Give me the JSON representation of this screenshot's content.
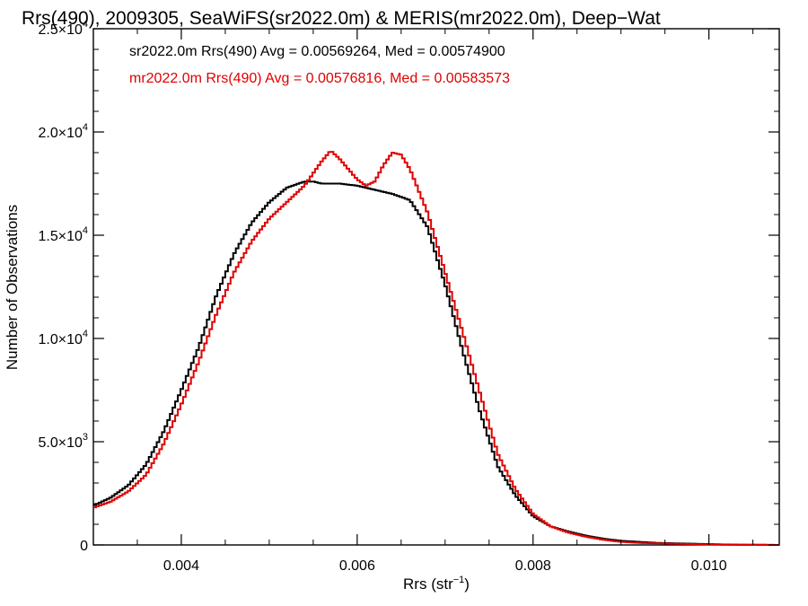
{
  "chart_data": {
    "type": "line",
    "title": "Rrs(490), 2009305, SeaWiFS(sr2022.0m) & MERIS(mr2022.0m), Deep−Wat",
    "xlabel": "Rrs (str",
    "xlabel_sup": "−1",
    "xlabel_close": ")",
    "ylabel": "Number of Observations",
    "xlim": [
      0.003,
      0.0108
    ],
    "ylim": [
      0,
      25000
    ],
    "x_ticks": [
      {
        "value": 0.004,
        "label": "0.004"
      },
      {
        "value": 0.006,
        "label": "0.006"
      },
      {
        "value": 0.008,
        "label": "0.008"
      },
      {
        "value": 0.01,
        "label": "0.010"
      }
    ],
    "y_ticks": [
      {
        "value": 0,
        "label": "0"
      },
      {
        "value": 5000,
        "mant": "5.0×10",
        "exp": "3"
      },
      {
        "value": 10000,
        "mant": "1.0×10",
        "exp": "4"
      },
      {
        "value": 15000,
        "mant": "1.5×10",
        "exp": "4"
      },
      {
        "value": 20000,
        "mant": "2.0×10",
        "exp": "4"
      },
      {
        "value": 25000,
        "mant": "2.5×10",
        "exp": "4"
      }
    ],
    "annotations": [
      {
        "text": "sr2022.0m Rrs(490) Avg = 0.00569264, Med = 0.00574900",
        "color": "#000000"
      },
      {
        "text": "mr2022.0m Rrs(490) Avg = 0.00576816, Med = 0.00583573",
        "color": "#e00000"
      }
    ],
    "series": [
      {
        "color": "#000000",
        "x": [
          0.003,
          0.0032,
          0.0034,
          0.0036,
          0.0038,
          0.004,
          0.0042,
          0.0044,
          0.0046,
          0.0048,
          0.005,
          0.0052,
          0.0054,
          0.0055,
          0.0056,
          0.0058,
          0.006,
          0.0062,
          0.0064,
          0.0066,
          0.0068,
          0.007,
          0.0072,
          0.0074,
          0.0076,
          0.0078,
          0.008,
          0.0082,
          0.0084,
          0.0086,
          0.0088,
          0.009,
          0.0092,
          0.0094,
          0.0096,
          0.0098,
          0.01,
          0.0102,
          0.0104,
          0.0106,
          0.0108
        ],
        "y": [
          1900,
          2300,
          2900,
          3900,
          5500,
          7500,
          9600,
          12100,
          14100,
          15600,
          16600,
          17300,
          17600,
          17600,
          17500,
          17500,
          17400,
          17200,
          17000,
          16700,
          15400,
          12600,
          9400,
          6400,
          3800,
          2400,
          1400,
          900,
          650,
          450,
          300,
          200,
          150,
          100,
          80,
          60,
          40,
          20,
          10,
          10,
          0
        ]
      },
      {
        "color": "#e00000",
        "x": [
          0.003,
          0.0032,
          0.0034,
          0.0036,
          0.0038,
          0.004,
          0.0042,
          0.0044,
          0.0046,
          0.0048,
          0.005,
          0.0052,
          0.0054,
          0.0056,
          0.0057,
          0.0058,
          0.006,
          0.0061,
          0.0062,
          0.0063,
          0.0064,
          0.0065,
          0.0066,
          0.0068,
          0.007,
          0.0072,
          0.0074,
          0.0076,
          0.0078,
          0.008,
          0.0082,
          0.0084,
          0.0086,
          0.0088,
          0.009,
          0.0092,
          0.0094,
          0.0096,
          0.0098,
          0.01,
          0.0102,
          0.0104,
          0.0106,
          0.0108
        ],
        "y": [
          1800,
          2100,
          2600,
          3400,
          4900,
          6800,
          8900,
          11200,
          13200,
          14700,
          15800,
          16600,
          17400,
          18600,
          19100,
          18700,
          17700,
          17400,
          17600,
          18400,
          19000,
          18900,
          18200,
          16100,
          13200,
          10300,
          7300,
          4400,
          2700,
          1500,
          900,
          600,
          400,
          250,
          150,
          100,
          80,
          60,
          40,
          20,
          10,
          10,
          0,
          0
        ]
      }
    ]
  }
}
